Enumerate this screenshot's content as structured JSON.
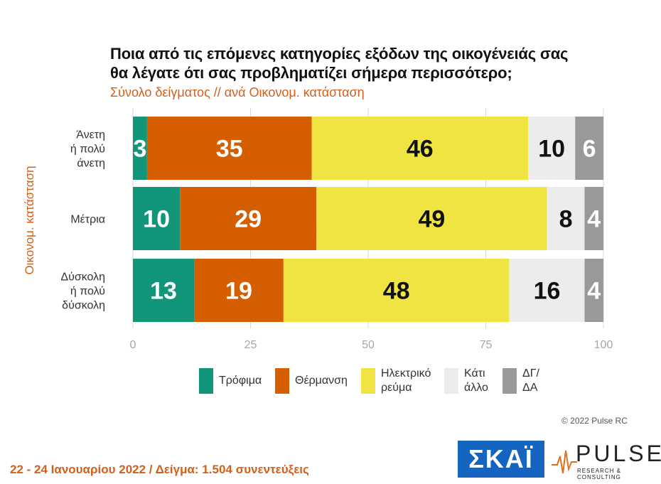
{
  "title_line1": "Ποια από τις επόμενες κατηγορίες εξόδων της οικογένειάς σας",
  "title_line2": "θα λέγατε ότι σας προβληματίζει σήμερα περισσότερο;",
  "subtitle": "Σύνολο δείγματος // ανά Οικονομ. κατάσταση",
  "yaxis_title": "Οικονομ. κατάσταση",
  "copyright": "© 2022 Pulse RC",
  "footer": "22 - 24 Ιανουαρίου 2022 / Δείγμα: 1.504 συνεντεύξεις",
  "logos": {
    "skai": "ΣΚΑΪ",
    "pulse": "PULSE",
    "pulse_sub": "RESEARCH & CONSULTING"
  },
  "watermark": {
    "word": "PULSE",
    "sub": "RESEARCH & CONSULTING"
  },
  "chart_data": {
    "type": "bar",
    "orientation": "horizontal",
    "stacked": true,
    "categories": [
      [
        "Άνετη",
        "ή πολύ",
        "άνετη"
      ],
      [
        "Μέτρια"
      ],
      [
        "Δύσκολη",
        "ή πολύ",
        "δύσκολη"
      ]
    ],
    "series": [
      {
        "name": "Τρόφιμα",
        "legend_lines": [
          "Τρόφιμα"
        ],
        "color": "#11967a",
        "label_color": "#ffffff",
        "values": [
          3,
          10,
          13
        ]
      },
      {
        "name": "Θέρμανση",
        "legend_lines": [
          "Θέρμανση"
        ],
        "color": "#d55f00",
        "label_color": "#ffffff",
        "values": [
          35,
          29,
          19
        ]
      },
      {
        "name": "Ηλεκτρικό ρεύμα",
        "legend_lines": [
          "Ηλεκτρικό",
          "ρεύμα"
        ],
        "color": "#f0e442",
        "label_color": "#111111",
        "values": [
          46,
          49,
          48
        ]
      },
      {
        "name": "Κάτι άλλο",
        "legend_lines": [
          "Κάτι",
          "άλλο"
        ],
        "color": "#ececec",
        "label_color": "#111111",
        "values": [
          10,
          8,
          16
        ]
      },
      {
        "name": "ΔΓ/ΔΑ",
        "legend_lines": [
          "ΔΓ/",
          "ΔΑ"
        ],
        "color": "#999999",
        "label_color": "#ffffff",
        "values": [
          6,
          4,
          4
        ]
      }
    ],
    "xlim": [
      0,
      100
    ],
    "xticks": [
      0,
      25,
      50,
      75,
      100
    ],
    "grid": true,
    "legend_position": "bottom"
  }
}
